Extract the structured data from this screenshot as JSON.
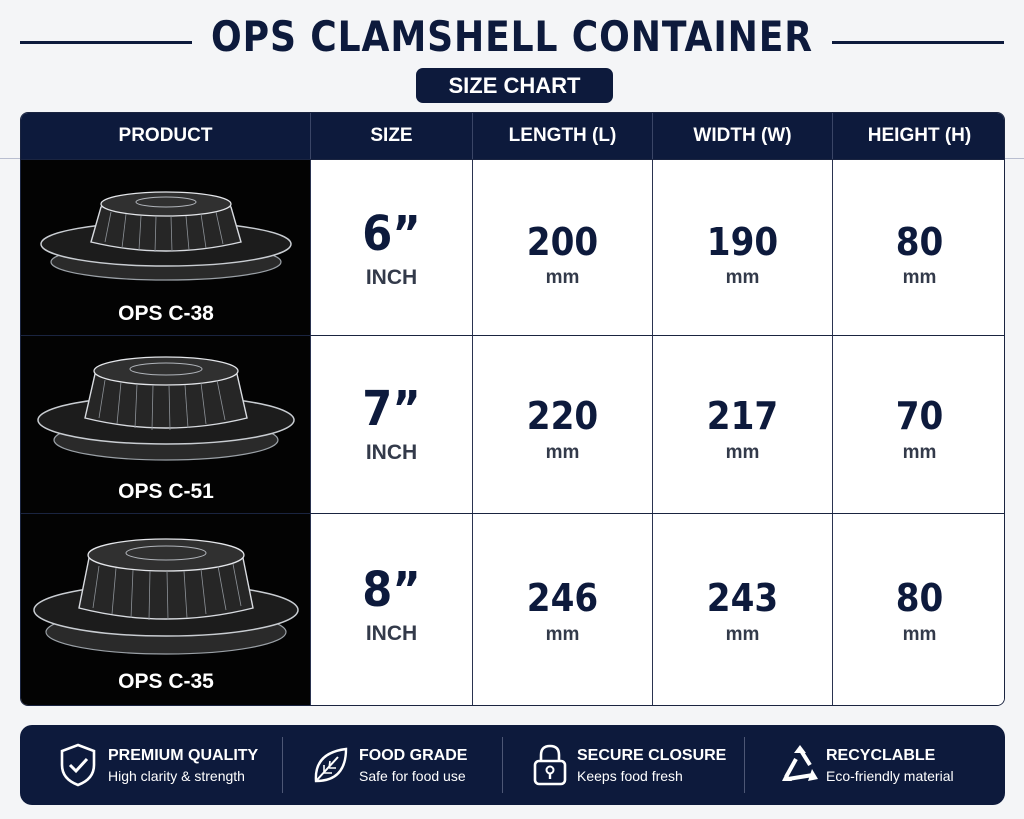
{
  "header": {
    "title": "OPS CLAMSHELL CONTAINER",
    "subtitle": "SIZE CHART"
  },
  "table": {
    "columns": [
      "PRODUCT",
      "SIZE",
      "LENGTH (L)",
      "WIDTH (W)",
      "HEIGHT (H)"
    ],
    "rows": [
      {
        "product": "OPS C-38",
        "size": "6”",
        "size_unit": "INCH",
        "length": "200",
        "length_unit": "mm",
        "width": "190",
        "width_unit": "mm",
        "height": "80",
        "height_unit": "mm"
      },
      {
        "product": "OPS C-51",
        "size": "7”",
        "size_unit": "INCH",
        "length": "220",
        "length_unit": "mm",
        "width": "217",
        "width_unit": "mm",
        "height": "70",
        "height_unit": "mm"
      },
      {
        "product": "OPS C-35",
        "size": "8”",
        "size_unit": "INCH",
        "length": "246",
        "length_unit": "mm",
        "width": "243",
        "width_unit": "mm",
        "height": "80",
        "height_unit": "mm"
      }
    ]
  },
  "features": [
    {
      "icon": "shield-check-icon",
      "title": "PREMIUM QUALITY",
      "subtitle": "High clarity & strength"
    },
    {
      "icon": "leaf-icon",
      "title": "FOOD GRADE",
      "subtitle": "Safe for food use"
    },
    {
      "icon": "lock-icon",
      "title": "SECURE CLOSURE",
      "subtitle": "Keeps food fresh"
    },
    {
      "icon": "recycle-icon",
      "title": "RECYCLABLE",
      "subtitle": "Eco-friendly material"
    }
  ],
  "colors": {
    "navy": "#0d1a3c",
    "product_bg": "#030303",
    "page_bg": "#f4f5f7"
  }
}
